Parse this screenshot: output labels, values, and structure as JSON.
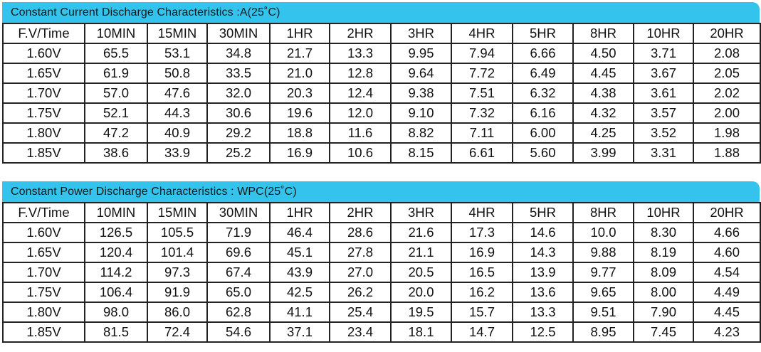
{
  "current": {
    "title": "Constant Current Discharge Characteristics :A(25˚C)",
    "headers": [
      "F.V/Time",
      "10MIN",
      "15MIN",
      "30MIN",
      "1HR",
      "2HR",
      "3HR",
      "4HR",
      "5HR",
      "8HR",
      "10HR",
      "20HR"
    ],
    "rows": [
      [
        "1.60V",
        "65.5",
        "53.1",
        "34.8",
        "21.7",
        "13.3",
        "9.95",
        "7.94",
        "6.66",
        "4.50",
        "3.71",
        "2.08"
      ],
      [
        "1.65V",
        "61.9",
        "50.8",
        "33.5",
        "21.0",
        "12.8",
        "9.64",
        "7.72",
        "6.49",
        "4.45",
        "3.67",
        "2.05"
      ],
      [
        "1.70V",
        "57.0",
        "47.6",
        "32.0",
        "20.3",
        "12.4",
        "9.38",
        "7.51",
        "6.32",
        "4.38",
        "3.61",
        "2.02"
      ],
      [
        "1.75V",
        "52.1",
        "44.3",
        "30.6",
        "19.6",
        "12.0",
        "9.10",
        "7.32",
        "6.16",
        "4.32",
        "3.57",
        "2.00"
      ],
      [
        "1.80V",
        "47.2",
        "40.9",
        "29.2",
        "18.8",
        "11.6",
        "8.82",
        "7.11",
        "6.00",
        "4.25",
        "3.52",
        "1.98"
      ],
      [
        "1.85V",
        "38.6",
        "33.9",
        "25.2",
        "16.9",
        "10.6",
        "8.15",
        "6.61",
        "5.60",
        "3.99",
        "3.31",
        "1.88"
      ]
    ]
  },
  "power": {
    "title": "Constant Power Discharge Characteristics : WPC(25˚C)",
    "headers": [
      "F.V/Time",
      "10MIN",
      "15MIN",
      "30MIN",
      "1HR",
      "2HR",
      "3HR",
      "4HR",
      "5HR",
      "8HR",
      "10HR",
      "20HR"
    ],
    "rows": [
      [
        "1.60V",
        "126.5",
        "105.5",
        "71.9",
        "46.4",
        "28.6",
        "21.6",
        "17.3",
        "14.6",
        "10.0",
        "8.30",
        "4.66"
      ],
      [
        "1.65V",
        "120.4",
        "101.4",
        "69.6",
        "45.1",
        "27.8",
        "21.1",
        "16.9",
        "14.3",
        "9.88",
        "8.19",
        "4.60"
      ],
      [
        "1.70V",
        "114.2",
        "97.3",
        "67.4",
        "43.9",
        "27.0",
        "20.5",
        "16.5",
        "13.9",
        "9.77",
        "8.09",
        "4.54"
      ],
      [
        "1.75V",
        "106.4",
        "91.9",
        "65.0",
        "42.5",
        "26.2",
        "20.0",
        "16.2",
        "13.6",
        "9.65",
        "8.00",
        "4.49"
      ],
      [
        "1.80V",
        "98.0",
        "86.0",
        "62.8",
        "41.1",
        "25.4",
        "19.5",
        "15.7",
        "13.3",
        "9.51",
        "7.90",
        "4.45"
      ],
      [
        "1.85V",
        "81.5",
        "72.4",
        "54.6",
        "37.1",
        "23.4",
        "18.1",
        "14.7",
        "12.5",
        "8.95",
        "7.45",
        "4.23"
      ]
    ]
  }
}
